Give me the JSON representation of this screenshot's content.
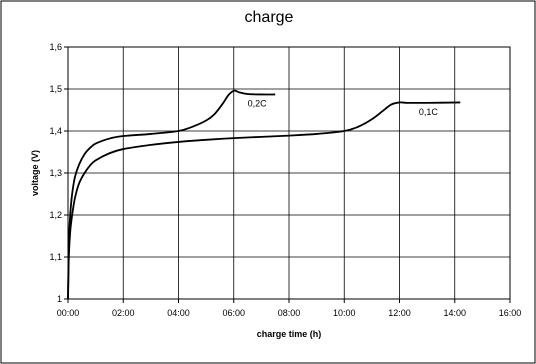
{
  "chart_data": {
    "type": "line",
    "title": "charge",
    "xlabel": "charge time (h)",
    "ylabel": "voltage (V)",
    "xlim": [
      0,
      16
    ],
    "ylim": [
      1.0,
      1.6
    ],
    "x_ticks": [
      0,
      2,
      4,
      6,
      8,
      10,
      12,
      14,
      16
    ],
    "x_tick_labels": [
      "00:00",
      "02:00",
      "04:00",
      "06:00",
      "08:00",
      "10:00",
      "12:00",
      "14:00",
      "16:00"
    ],
    "y_ticks": [
      1.0,
      1.1,
      1.2,
      1.3,
      1.4,
      1.5,
      1.6
    ],
    "y_tick_labels": [
      "1",
      "1,1",
      "1,2",
      "1,3",
      "1,4",
      "1,5",
      "1,6"
    ],
    "grid": true,
    "legend": "none",
    "series": [
      {
        "name": "0,2C",
        "label_at": [
          6.5,
          1.465
        ],
        "x": [
          0.0,
          0.03,
          0.08,
          0.15,
          0.25,
          0.4,
          0.6,
          0.8,
          1.0,
          1.5,
          2.0,
          3.0,
          4.0,
          4.5,
          5.0,
          5.3,
          5.6,
          5.8,
          5.95,
          6.05,
          6.2,
          6.5,
          7.0,
          7.5
        ],
        "y": [
          1.0,
          1.13,
          1.2,
          1.25,
          1.29,
          1.32,
          1.345,
          1.36,
          1.37,
          1.382,
          1.388,
          1.393,
          1.4,
          1.41,
          1.425,
          1.44,
          1.465,
          1.485,
          1.494,
          1.496,
          1.492,
          1.488,
          1.487,
          1.487
        ]
      },
      {
        "name": "0,1C",
        "label_at": [
          12.7,
          1.445
        ],
        "x": [
          0.0,
          0.03,
          0.08,
          0.15,
          0.25,
          0.4,
          0.6,
          0.8,
          1.0,
          1.5,
          2.0,
          3.0,
          4.0,
          5.0,
          6.0,
          7.0,
          8.0,
          9.0,
          10.0,
          10.5,
          11.0,
          11.4,
          11.7,
          12.0,
          12.3,
          13.0,
          14.2
        ],
        "y": [
          1.0,
          1.1,
          1.16,
          1.2,
          1.24,
          1.275,
          1.3,
          1.318,
          1.33,
          1.347,
          1.357,
          1.367,
          1.374,
          1.379,
          1.383,
          1.386,
          1.389,
          1.393,
          1.4,
          1.41,
          1.428,
          1.448,
          1.463,
          1.468,
          1.467,
          1.467,
          1.468
        ]
      }
    ]
  }
}
